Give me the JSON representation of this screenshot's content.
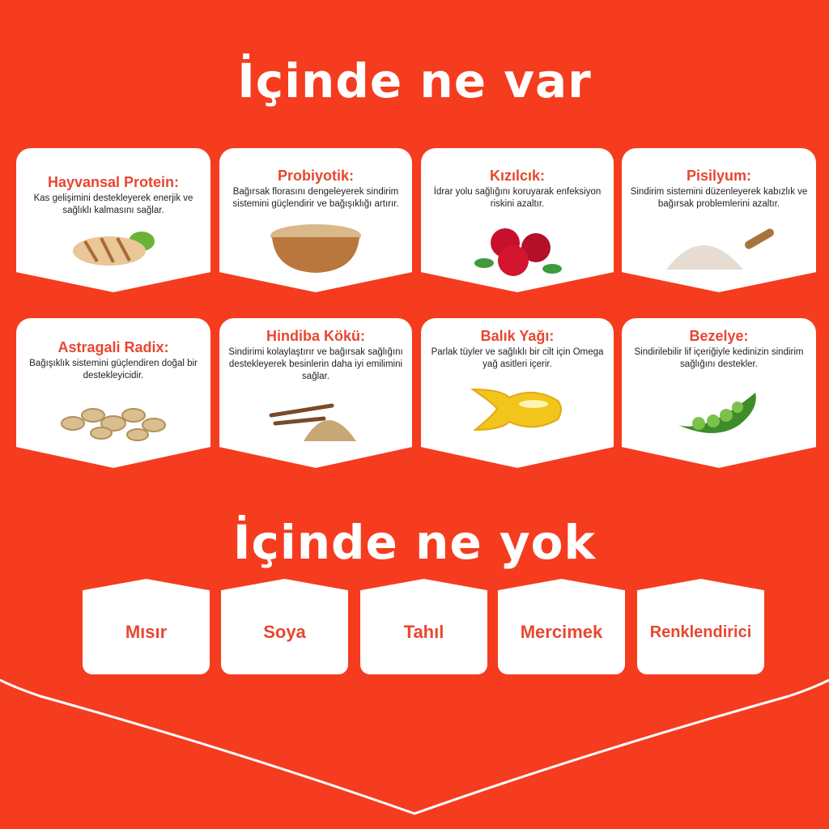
{
  "headings": {
    "present": "İçinde ne var",
    "absent": "İçinde ne yok"
  },
  "ingredients": [
    {
      "title": "Hayvansal Protein:",
      "text": "Kas gelişimini destekleyerek enerjik ve sağlıklı kalmasını sağlar.",
      "icon": "chicken-breast-icon"
    },
    {
      "title": "Probiyotik:",
      "text": "Bağırsak florasını dengeleyerek sindirim sistemini güçlendirir ve bağışıklığı artırır.",
      "icon": "powder-bowl-icon"
    },
    {
      "title": "Kızılcık:",
      "text": "İdrar yolu sağlığını koruyarak enfeksiyon riskini azaltır.",
      "icon": "cranberry-icon"
    },
    {
      "title": "Pisilyum:",
      "text": "Sindirim sistemini düzenleyerek kabızlık ve bağırsak problemlerini azaltır.",
      "icon": "psyllium-powder-icon"
    },
    {
      "title": "Astragali Radix:",
      "text": "Bağışıklık sistemini güçlendiren doğal bir destekleyicidir.",
      "icon": "root-slices-icon"
    },
    {
      "title": "Hindiba Kökü:",
      "text": "Sindirimi kolaylaştırır ve bağırsak sağlığını destekleyerek besinlerin daha iyi emilimini sağlar.",
      "icon": "chicory-root-icon"
    },
    {
      "title": "Balık Yağı:",
      "text": "Parlak tüyler ve sağlıklı bir cilt için Omega yağ asitleri içerir.",
      "icon": "fish-oil-capsule-icon"
    },
    {
      "title": "Bezelye:",
      "text": "Sindirilebilir lif içeriğiyle kedinizin sindirim sağlığını destekler.",
      "icon": "pea-pod-icon"
    }
  ],
  "excluded": [
    "Mısır",
    "Soya",
    "Tahıl",
    "Mercimek",
    "Renklendirici"
  ],
  "colors": {
    "background": "#F53C1E",
    "accent": "#E8472F",
    "card": "#FFFFFF"
  }
}
